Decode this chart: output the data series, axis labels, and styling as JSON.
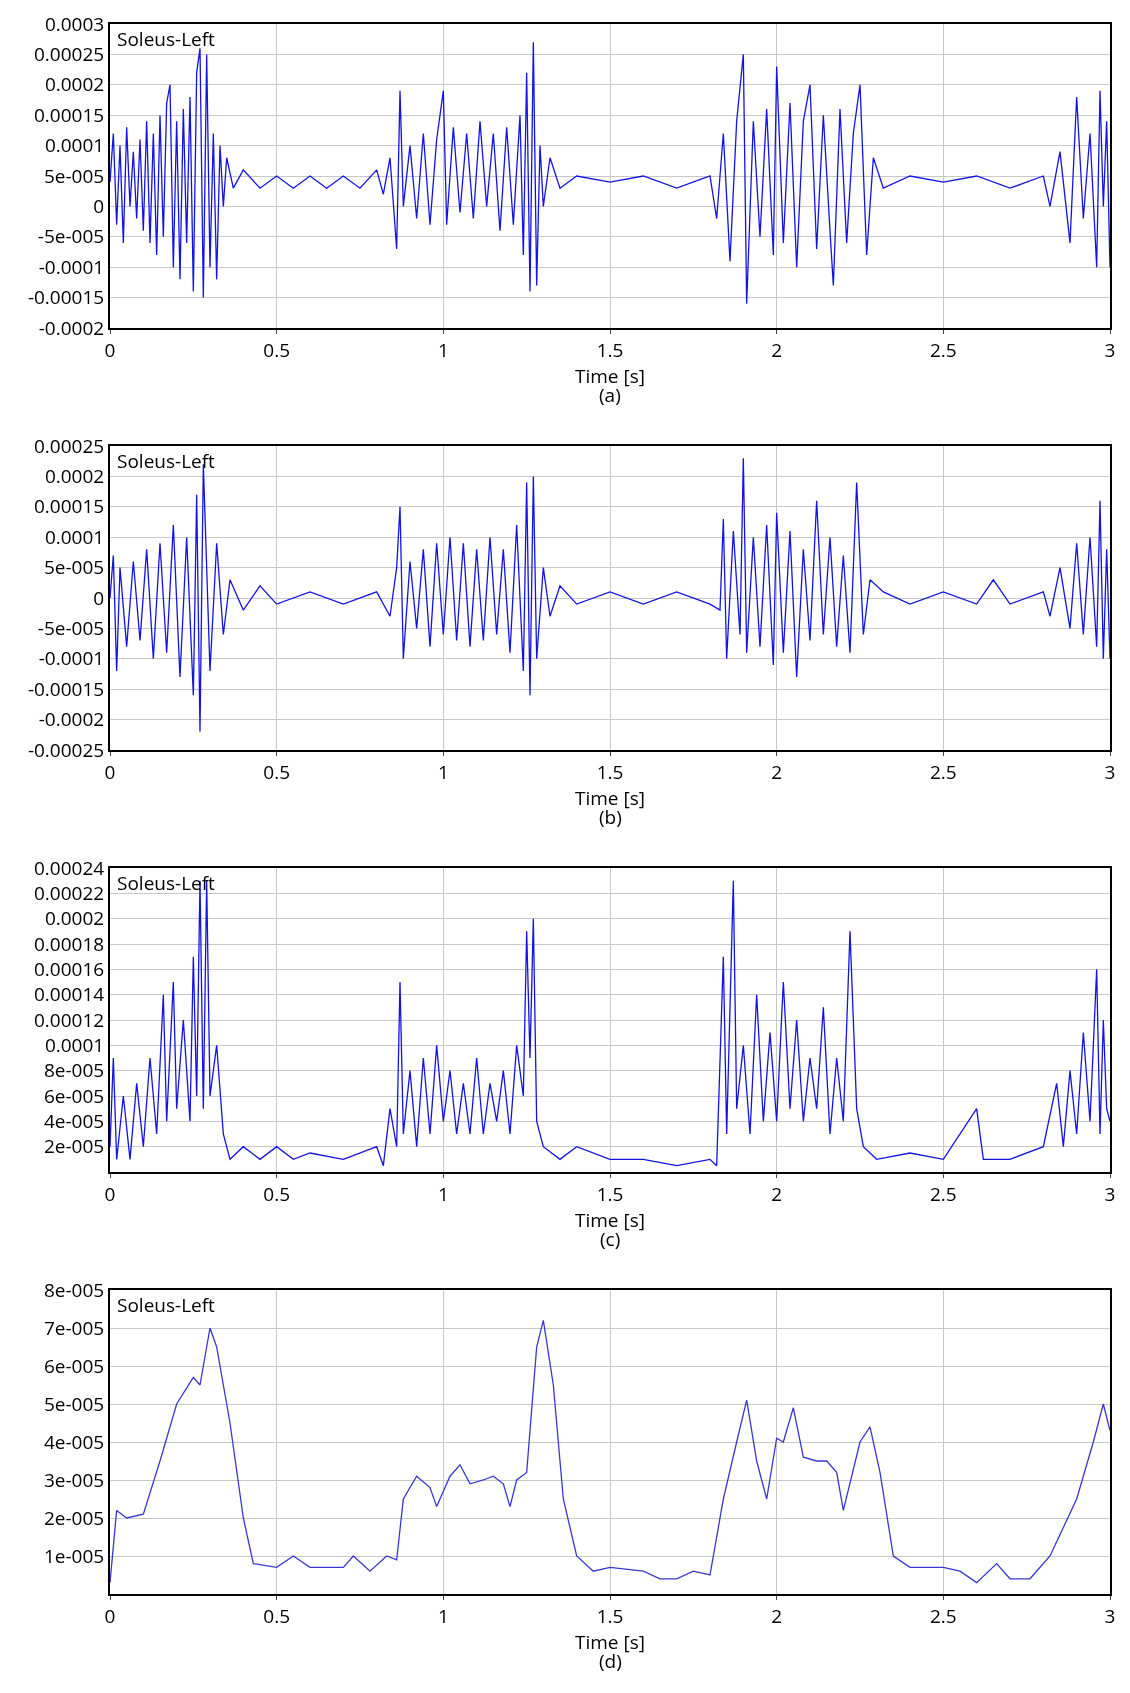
{
  "chart_data": [
    {
      "type": "line",
      "xlabel": "Time [s]",
      "annotations": [
        "Soleus-Left",
        "(a)"
      ],
      "color": "#1414e0",
      "grid": true,
      "xlim": [
        0,
        3
      ],
      "xticks": [
        0,
        0.5,
        1,
        1.5,
        2,
        2.5,
        3
      ],
      "ylim": [
        -0.0002,
        0.0003
      ],
      "yticks": [
        -0.0002,
        -0.00015,
        -0.0001,
        {
          "value": -5e-05,
          "label": "-5e-005"
        },
        0,
        {
          "value": 5e-05,
          "label": "5e-005"
        },
        0.0001,
        0.00015,
        0.0002,
        0.00025,
        0.0003
      ],
      "x": [
        0,
        0.01,
        0.02,
        0.03,
        0.04,
        0.05,
        0.06,
        0.07,
        0.08,
        0.09,
        0.1,
        0.11,
        0.12,
        0.13,
        0.14,
        0.15,
        0.16,
        0.17,
        0.18,
        0.19,
        0.2,
        0.21,
        0.22,
        0.23,
        0.24,
        0.25,
        0.26,
        0.27,
        0.28,
        0.29,
        0.3,
        0.31,
        0.32,
        0.33,
        0.34,
        0.35,
        0.37,
        0.4,
        0.45,
        0.5,
        0.55,
        0.6,
        0.65,
        0.7,
        0.75,
        0.8,
        0.82,
        0.84,
        0.86,
        0.87,
        0.88,
        0.9,
        0.92,
        0.94,
        0.96,
        0.98,
        1.0,
        1.01,
        1.03,
        1.05,
        1.07,
        1.09,
        1.11,
        1.13,
        1.15,
        1.17,
        1.19,
        1.21,
        1.23,
        1.24,
        1.25,
        1.26,
        1.27,
        1.28,
        1.29,
        1.3,
        1.32,
        1.35,
        1.4,
        1.5,
        1.6,
        1.7,
        1.8,
        1.82,
        1.84,
        1.86,
        1.88,
        1.9,
        1.91,
        1.93,
        1.95,
        1.97,
        1.99,
        2.0,
        2.02,
        2.04,
        2.06,
        2.08,
        2.1,
        2.12,
        2.14,
        2.16,
        2.17,
        2.19,
        2.21,
        2.23,
        2.25,
        2.27,
        2.29,
        2.32,
        2.4,
        2.5,
        2.6,
        2.7,
        2.8,
        2.82,
        2.85,
        2.88,
        2.9,
        2.92,
        2.94,
        2.96,
        2.97,
        2.98,
        2.99,
        3.0
      ],
      "values": [
        4e-05,
        0.00012,
        -3e-05,
        0.0001,
        -6e-05,
        0.00013,
        0,
        9e-05,
        -2e-05,
        0.00011,
        -4e-05,
        0.00014,
        -6e-05,
        0.00012,
        -8e-05,
        0.00015,
        -5e-05,
        0.00017,
        0.0002,
        -0.0001,
        0.00014,
        -0.00012,
        0.00016,
        -6e-05,
        0.00018,
        -0.00014,
        0.00022,
        0.00026,
        -0.00015,
        0.00025,
        -0.0001,
        0.00012,
        -0.00012,
        0.0001,
        0,
        8e-05,
        3e-05,
        6e-05,
        3e-05,
        5e-05,
        3e-05,
        5e-05,
        3e-05,
        5e-05,
        3e-05,
        6e-05,
        2e-05,
        8e-05,
        -7e-05,
        0.00019,
        0,
        0.0001,
        -2e-05,
        0.00012,
        -3e-05,
        0.00011,
        0.00019,
        -3e-05,
        0.00013,
        -1e-05,
        0.00012,
        -2e-05,
        0.00014,
        0,
        0.00012,
        -4e-05,
        0.00013,
        -3e-05,
        0.00015,
        -8e-05,
        0.00022,
        -0.00014,
        0.00027,
        -0.00013,
        0.0001,
        0,
        8e-05,
        3e-05,
        5e-05,
        4e-05,
        5e-05,
        3e-05,
        5e-05,
        -2e-05,
        0.00012,
        -9e-05,
        0.00014,
        0.00025,
        -0.00016,
        0.00014,
        -5e-05,
        0.00016,
        -8e-05,
        0.00023,
        -6e-05,
        0.00017,
        -0.0001,
        0.00014,
        0.0002,
        -7e-05,
        0.00015,
        -4e-05,
        -0.00013,
        0.00016,
        -6e-05,
        0.00012,
        0.0002,
        -8e-05,
        8e-05,
        3e-05,
        5e-05,
        4e-05,
        5e-05,
        3e-05,
        5e-05,
        0,
        9e-05,
        -6e-05,
        0.00018,
        -2e-05,
        0.00012,
        -0.0001,
        0.00019,
        0,
        0.00014,
        -0.0001
      ]
    },
    {
      "type": "line",
      "xlabel": "Time [s]",
      "annotations": [
        "Soleus-Left",
        "(b)"
      ],
      "color": "#1414e0",
      "grid": true,
      "xlim": [
        0,
        3
      ],
      "xticks": [
        0,
        0.5,
        1,
        1.5,
        2,
        2.5,
        3
      ],
      "ylim": [
        -0.00025,
        0.00025
      ],
      "yticks": [
        -0.00025,
        -0.0002,
        -0.00015,
        -0.0001,
        {
          "value": -5e-05,
          "label": "-5e-005"
        },
        0,
        {
          "value": 5e-05,
          "label": "5e-005"
        },
        0.0001,
        0.00015,
        0.0002,
        0.00025
      ],
      "x": [
        0,
        0.01,
        0.02,
        0.03,
        0.05,
        0.07,
        0.09,
        0.11,
        0.13,
        0.15,
        0.17,
        0.19,
        0.21,
        0.23,
        0.25,
        0.26,
        0.27,
        0.28,
        0.3,
        0.32,
        0.34,
        0.36,
        0.4,
        0.45,
        0.5,
        0.6,
        0.7,
        0.8,
        0.84,
        0.86,
        0.87,
        0.88,
        0.9,
        0.92,
        0.94,
        0.96,
        0.98,
        1.0,
        1.02,
        1.04,
        1.06,
        1.08,
        1.1,
        1.12,
        1.14,
        1.16,
        1.18,
        1.2,
        1.22,
        1.24,
        1.25,
        1.26,
        1.27,
        1.28,
        1.3,
        1.32,
        1.35,
        1.4,
        1.5,
        1.6,
        1.7,
        1.8,
        1.83,
        1.84,
        1.85,
        1.87,
        1.89,
        1.9,
        1.91,
        1.93,
        1.95,
        1.97,
        1.99,
        2.0,
        2.02,
        2.04,
        2.06,
        2.08,
        2.1,
        2.12,
        2.14,
        2.16,
        2.18,
        2.2,
        2.22,
        2.24,
        2.26,
        2.28,
        2.32,
        2.4,
        2.5,
        2.6,
        2.65,
        2.7,
        2.8,
        2.82,
        2.85,
        2.88,
        2.9,
        2.92,
        2.94,
        2.96,
        2.97,
        2.98,
        2.99,
        3.0
      ],
      "values": [
        0,
        7e-05,
        -0.00012,
        5e-05,
        -8e-05,
        6e-05,
        -7e-05,
        8e-05,
        -0.0001,
        9e-05,
        -9e-05,
        0.00012,
        -0.00013,
        0.0001,
        -0.00016,
        0.00017,
        -0.00022,
        0.00022,
        -0.00012,
        9e-05,
        -6e-05,
        3e-05,
        -2e-05,
        2e-05,
        -1e-05,
        1e-05,
        -1e-05,
        1e-05,
        -3e-05,
        5e-05,
        0.00015,
        -0.0001,
        6e-05,
        -5e-05,
        8e-05,
        -8e-05,
        9e-05,
        -6e-05,
        0.0001,
        -7e-05,
        9e-05,
        -8e-05,
        8e-05,
        -7e-05,
        0.0001,
        -6e-05,
        8e-05,
        -9e-05,
        0.00012,
        -0.00012,
        0.00019,
        -0.00016,
        0.0002,
        -0.0001,
        5e-05,
        -3e-05,
        2e-05,
        -1e-05,
        1e-05,
        -1e-05,
        1e-05,
        -1e-05,
        -2e-05,
        0.00013,
        -0.0001,
        0.00011,
        -6e-05,
        0.00023,
        -9e-05,
        0.0001,
        -8e-05,
        0.00012,
        -0.00011,
        0.00014,
        -9e-05,
        0.00011,
        -0.00013,
        8e-05,
        -7e-05,
        0.00016,
        -6e-05,
        0.0001,
        -8e-05,
        7e-05,
        -9e-05,
        0.00019,
        -6e-05,
        3e-05,
        1e-05,
        -1e-05,
        1e-05,
        -1e-05,
        3e-05,
        -1e-05,
        1e-05,
        -3e-05,
        5e-05,
        -5e-05,
        9e-05,
        -6e-05,
        0.0001,
        -8e-05,
        0.00016,
        -0.0001,
        8e-05,
        -0.0001
      ]
    },
    {
      "type": "line",
      "xlabel": "Time [s]",
      "annotations": [
        "Soleus-Left",
        "(c)"
      ],
      "color": "#1414e0",
      "grid": true,
      "xlim": [
        0,
        3
      ],
      "xticks": [
        0,
        0.5,
        1,
        1.5,
        2,
        2.5,
        3
      ],
      "ylim": [
        0,
        0.00024
      ],
      "yticks": [
        {
          "value": 2e-05,
          "label": "2e-005"
        },
        {
          "value": 4e-05,
          "label": "4e-005"
        },
        {
          "value": 6e-05,
          "label": "6e-005"
        },
        {
          "value": 8e-05,
          "label": "8e-005"
        },
        0.0001,
        0.00012,
        0.00014,
        0.00016,
        0.00018,
        0.0002,
        0.00022,
        0.00024
      ],
      "x": [
        0,
        0.01,
        0.02,
        0.04,
        0.06,
        0.08,
        0.1,
        0.12,
        0.14,
        0.16,
        0.17,
        0.19,
        0.2,
        0.22,
        0.24,
        0.25,
        0.26,
        0.27,
        0.28,
        0.29,
        0.3,
        0.32,
        0.34,
        0.36,
        0.4,
        0.45,
        0.5,
        0.55,
        0.6,
        0.7,
        0.8,
        0.82,
        0.84,
        0.86,
        0.87,
        0.88,
        0.9,
        0.92,
        0.94,
        0.96,
        0.98,
        1.0,
        1.02,
        1.04,
        1.06,
        1.08,
        1.1,
        1.12,
        1.14,
        1.16,
        1.18,
        1.2,
        1.22,
        1.24,
        1.25,
        1.26,
        1.27,
        1.28,
        1.3,
        1.35,
        1.4,
        1.5,
        1.6,
        1.7,
        1.8,
        1.82,
        1.84,
        1.85,
        1.87,
        1.88,
        1.9,
        1.92,
        1.94,
        1.96,
        1.98,
        2.0,
        2.02,
        2.04,
        2.06,
        2.08,
        2.1,
        2.12,
        2.14,
        2.16,
        2.18,
        2.2,
        2.22,
        2.24,
        2.26,
        2.3,
        2.4,
        2.5,
        2.6,
        2.62,
        2.7,
        2.8,
        2.84,
        2.86,
        2.88,
        2.9,
        2.92,
        2.94,
        2.96,
        2.97,
        2.98,
        2.99,
        3.0
      ],
      "values": [
        2e-05,
        9e-05,
        1e-05,
        6e-05,
        1e-05,
        7e-05,
        2e-05,
        9e-05,
        3e-05,
        0.00014,
        4e-05,
        0.00015,
        5e-05,
        0.00012,
        4e-05,
        0.00017,
        6e-05,
        0.00023,
        5e-05,
        0.00023,
        6e-05,
        0.0001,
        3e-05,
        1e-05,
        2e-05,
        1e-05,
        2e-05,
        1e-05,
        1.5e-05,
        1e-05,
        2e-05,
        5e-06,
        5e-05,
        2e-05,
        0.00015,
        3e-05,
        8e-05,
        2e-05,
        9e-05,
        3e-05,
        0.0001,
        4e-05,
        8e-05,
        3e-05,
        7e-05,
        3e-05,
        9e-05,
        3e-05,
        7e-05,
        4e-05,
        8e-05,
        3e-05,
        0.0001,
        6e-05,
        0.00019,
        9e-05,
        0.0002,
        4e-05,
        2e-05,
        1e-05,
        2e-05,
        1e-05,
        1e-05,
        5e-06,
        1e-05,
        5e-06,
        0.00017,
        3e-05,
        0.00023,
        5e-05,
        0.0001,
        3e-05,
        0.00014,
        4e-05,
        0.00011,
        4e-05,
        0.00015,
        5e-05,
        0.00012,
        4e-05,
        9e-05,
        5e-05,
        0.00013,
        3e-05,
        9e-05,
        4e-05,
        0.00019,
        5e-05,
        2e-05,
        1e-05,
        1.5e-05,
        1e-05,
        5e-05,
        1e-05,
        1e-05,
        2e-05,
        7e-05,
        2e-05,
        8e-05,
        3e-05,
        0.00011,
        4e-05,
        0.00016,
        3e-05,
        0.00012,
        5e-05,
        4e-05
      ]
    },
    {
      "type": "line",
      "xlabel": "Time [s]",
      "annotations": [
        "Soleus-Left",
        "(d)"
      ],
      "color": "#3838d0",
      "grid": true,
      "xlim": [
        0,
        3
      ],
      "xticks": [
        0,
        0.5,
        1,
        1.5,
        2,
        2.5,
        3
      ],
      "ylim": [
        0,
        8e-05
      ],
      "yticks": [
        {
          "value": 1e-05,
          "label": "1e-005"
        },
        {
          "value": 2e-05,
          "label": "2e-005"
        },
        {
          "value": 3e-05,
          "label": "3e-005"
        },
        {
          "value": 4e-05,
          "label": "4e-005"
        },
        {
          "value": 5e-05,
          "label": "5e-005"
        },
        {
          "value": 6e-05,
          "label": "6e-005"
        },
        {
          "value": 7e-05,
          "label": "7e-005"
        },
        {
          "value": 8e-05,
          "label": "8e-005"
        }
      ],
      "x": [
        0,
        0.02,
        0.05,
        0.1,
        0.15,
        0.2,
        0.25,
        0.27,
        0.3,
        0.32,
        0.36,
        0.4,
        0.43,
        0.5,
        0.55,
        0.6,
        0.7,
        0.73,
        0.78,
        0.83,
        0.86,
        0.88,
        0.92,
        0.96,
        0.98,
        1.02,
        1.05,
        1.08,
        1.12,
        1.15,
        1.18,
        1.2,
        1.22,
        1.25,
        1.28,
        1.3,
        1.33,
        1.36,
        1.4,
        1.45,
        1.5,
        1.6,
        1.65,
        1.7,
        1.75,
        1.8,
        1.84,
        1.88,
        1.91,
        1.94,
        1.97,
        2.0,
        2.02,
        2.05,
        2.08,
        2.12,
        2.15,
        2.18,
        2.2,
        2.25,
        2.28,
        2.31,
        2.35,
        2.4,
        2.5,
        2.55,
        2.6,
        2.66,
        2.7,
        2.76,
        2.82,
        2.9,
        2.95,
        2.98,
        3.0
      ],
      "values": [
        3e-06,
        2.2e-05,
        2e-05,
        2.1e-05,
        3.5e-05,
        5e-05,
        5.7e-05,
        5.5e-05,
        7e-05,
        6.5e-05,
        4.5e-05,
        2e-05,
        8e-06,
        7e-06,
        1e-05,
        7e-06,
        7e-06,
        1e-05,
        6e-06,
        1e-05,
        9e-06,
        2.5e-05,
        3.1e-05,
        2.8e-05,
        2.3e-05,
        3.1e-05,
        3.4e-05,
        2.9e-05,
        3e-05,
        3.1e-05,
        2.9e-05,
        2.3e-05,
        3e-05,
        3.2e-05,
        6.5e-05,
        7.2e-05,
        5.5e-05,
        2.5e-05,
        1e-05,
        6e-06,
        7e-06,
        6e-06,
        4e-06,
        4e-06,
        6e-06,
        5e-06,
        2.5e-05,
        4e-05,
        5.1e-05,
        3.5e-05,
        2.5e-05,
        4.1e-05,
        4e-05,
        4.9e-05,
        3.6e-05,
        3.5e-05,
        3.5e-05,
        3.2e-05,
        2.2e-05,
        4e-05,
        4.4e-05,
        3.2e-05,
        1e-05,
        7e-06,
        7e-06,
        6e-06,
        3e-06,
        8e-06,
        4e-06,
        4e-06,
        1e-05,
        2.5e-05,
        4e-05,
        5e-05,
        4.3e-05
      ]
    }
  ]
}
